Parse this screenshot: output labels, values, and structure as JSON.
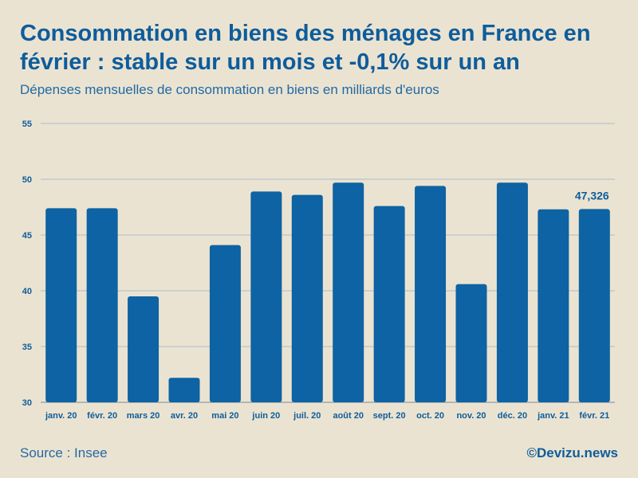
{
  "title_line1": "Consommation en biens des ménages en France en",
  "title_line2": "février : stable sur un mois et -0,1% sur un an",
  "subtitle": "Dépenses mensuelles de consommation en biens en milliards d'euros",
  "source": "Source : Insee",
  "brand": "©Devizu.news",
  "colors": {
    "background": "#ebe3d1",
    "bar": "#0d63a3",
    "text": "#0d5d9c",
    "grid": "#a9bccb"
  },
  "chart_data": {
    "type": "bar",
    "categories": [
      "janv. 20",
      "févr. 20",
      "mars 20",
      "avr. 20",
      "mai 20",
      "juin 20",
      "juil. 20",
      "août 20",
      "sept. 20",
      "oct. 20",
      "nov. 20",
      "déc. 20",
      "janv. 21",
      "févr. 21"
    ],
    "values": [
      47.4,
      47.4,
      39.5,
      32.2,
      44.1,
      48.9,
      48.6,
      49.7,
      47.6,
      49.4,
      40.6,
      49.7,
      47.3,
      47.326
    ],
    "ylim": [
      30,
      55
    ],
    "yticks": [
      30,
      35,
      40,
      45,
      50,
      55
    ],
    "annotation": {
      "category": "févr. 21",
      "label": "47,326"
    },
    "xlabel": "",
    "ylabel": ""
  }
}
